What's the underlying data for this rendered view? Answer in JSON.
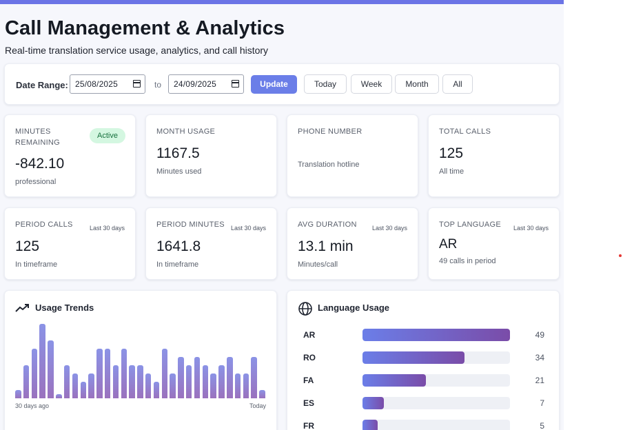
{
  "header": {
    "title": "Call Management & Analytics",
    "subtitle": "Real-time translation service usage, analytics, and call history"
  },
  "date_range": {
    "label": "Date Range:",
    "from": "25/08/2025",
    "separator": "to",
    "to": "24/09/2025",
    "update_label": "Update",
    "presets": [
      "Today",
      "Week",
      "Month",
      "All"
    ]
  },
  "stats_top": {
    "minutes_remaining": {
      "label": "MINUTES REMAINING",
      "badge": "Active",
      "value": "-842.10",
      "sub": "professional"
    },
    "month_usage": {
      "label": "MONTH USAGE",
      "value": "1167.5",
      "sub": "Minutes used"
    },
    "phone_number": {
      "label": "PHONE NUMBER",
      "value": "",
      "sub": "Translation hotline"
    },
    "total_calls": {
      "label": "TOTAL CALLS",
      "value": "125",
      "sub": "All time"
    }
  },
  "stats_period": {
    "period_calls": {
      "label": "PERIOD CALLS",
      "tag": "Last 30 days",
      "value": "125",
      "sub": "In timeframe"
    },
    "period_minutes": {
      "label": "PERIOD MINUTES",
      "tag": "Last 30 days",
      "value": "1641.8",
      "sub": "In timeframe"
    },
    "avg_duration": {
      "label": "AVG DURATION",
      "tag": "Last 30 days",
      "value": "13.1 min",
      "sub": "Minutes/call"
    },
    "top_language": {
      "label": "TOP LANGUAGE",
      "tag": "Last 30 days",
      "value": "AR",
      "sub": "49 calls in period"
    }
  },
  "usage_trends": {
    "title": "Usage Trends",
    "icon": "trending-up-icon",
    "start_label": "30 days ago",
    "end_label": "Today",
    "bars": [
      1,
      4,
      6,
      9,
      7,
      0.5,
      4,
      3,
      2,
      3,
      6,
      6,
      4,
      6,
      4,
      4,
      3,
      2,
      6,
      3,
      5,
      4,
      5,
      4,
      3,
      4,
      5,
      3,
      3,
      5,
      1
    ],
    "bar_max": 9,
    "colors": {
      "top": "#8b93e6",
      "bottom": "#9a72be"
    }
  },
  "language_usage": {
    "title": "Language Usage",
    "icon": "globe-icon",
    "max": 49,
    "items": [
      {
        "code": "AR",
        "count": 49
      },
      {
        "code": "RO",
        "count": 34
      },
      {
        "code": "FA",
        "count": 21
      },
      {
        "code": "ES",
        "count": 7
      },
      {
        "code": "FR",
        "count": 5
      }
    ]
  },
  "colors": {
    "accent": "#6b7ee8",
    "badge_bg": "#d4f7e1",
    "badge_text": "#16703d",
    "bar_end": "#7a4ca8"
  }
}
